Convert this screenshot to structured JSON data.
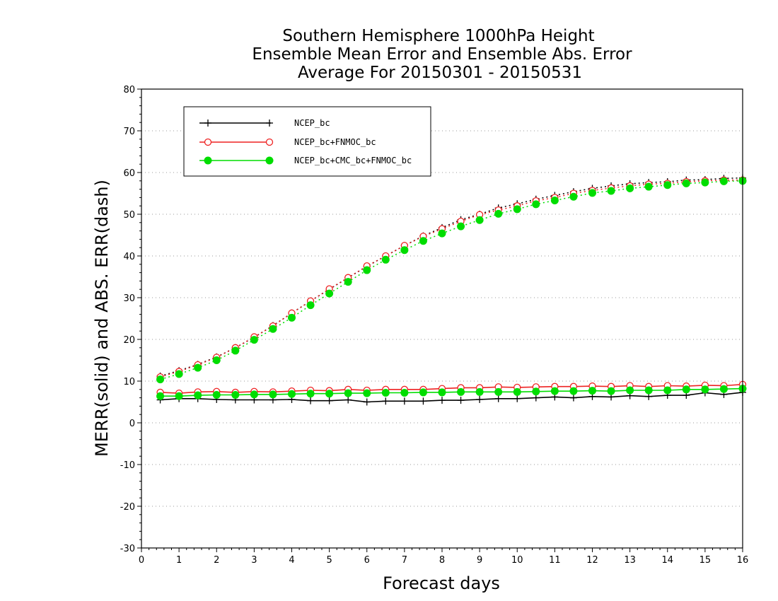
{
  "chart_data": {
    "type": "line",
    "title": [
      "Southern Hemisphere 1000hPa Height",
      "Ensemble Mean Error and Ensemble Abs. Error",
      "Average For 20150301 - 20150531"
    ],
    "xlabel": "Forecast days",
    "ylabel": "MERR(solid) and ABS. ERR(dash)",
    "xlim": [
      0,
      16
    ],
    "ylim": [
      -30,
      80
    ],
    "xticks": [
      "0",
      "1",
      "2",
      "3",
      "4",
      "5",
      "6",
      "7",
      "8",
      "9",
      "10",
      "11",
      "12",
      "13",
      "14",
      "15",
      "16"
    ],
    "yticks": [
      "-30",
      "-20",
      "-10",
      "0",
      "10",
      "20",
      "30",
      "40",
      "50",
      "60",
      "70",
      "80"
    ],
    "grid": "horizontal dotted",
    "legend_position": "top-left",
    "x": [
      0.5,
      1,
      1.5,
      2,
      2.5,
      3,
      3.5,
      4,
      4.5,
      5,
      5.5,
      6,
      6.5,
      7,
      7.5,
      8,
      8.5,
      9,
      9.5,
      10,
      10.5,
      11,
      11.5,
      12,
      12.5,
      13,
      13.5,
      14,
      14.5,
      15,
      15.5,
      16
    ],
    "series": [
      {
        "name": "NCEP_bc",
        "color": "#000000",
        "marker": "plus",
        "merr": [
          5.5,
          5.8,
          5.8,
          5.6,
          5.5,
          5.5,
          5.5,
          5.6,
          5.3,
          5.3,
          5.5,
          5.0,
          5.2,
          5.2,
          5.2,
          5.4,
          5.4,
          5.6,
          5.8,
          5.8,
          6.0,
          6.2,
          6.0,
          6.3,
          6.2,
          6.5,
          6.3,
          6.6,
          6.6,
          7.2,
          6.8,
          7.3
        ],
        "abs_err": [
          11.2,
          12.5,
          14.0,
          15.8,
          18.0,
          20.5,
          23.3,
          26.3,
          29.2,
          32.0,
          34.8,
          37.5,
          40.0,
          42.5,
          44.8,
          46.8,
          48.7,
          50.0,
          51.5,
          52.5,
          53.6,
          54.5,
          55.4,
          56.2,
          56.8,
          57.3,
          57.6,
          57.8,
          58.2,
          58.3,
          58.6,
          58.7
        ]
      },
      {
        "name": "NCEP_bc+FNMOC_bc",
        "color": "#ee2222",
        "marker": "open-circle",
        "merr": [
          7.3,
          7.1,
          7.4,
          7.5,
          7.3,
          7.5,
          7.4,
          7.6,
          7.8,
          7.7,
          8.0,
          7.8,
          8.0,
          8.0,
          8.0,
          8.2,
          8.4,
          8.4,
          8.6,
          8.5,
          8.6,
          8.7,
          8.7,
          8.8,
          8.7,
          8.9,
          8.7,
          8.9,
          8.8,
          9.0,
          8.9,
          9.2
        ],
        "abs_err": [
          11.0,
          12.3,
          13.9,
          15.7,
          18.0,
          20.6,
          23.2,
          26.3,
          29.2,
          32.1,
          34.8,
          37.6,
          40.0,
          42.5,
          44.7,
          46.5,
          48.3,
          49.9,
          51.0,
          52.0,
          53.2,
          54.0,
          55.0,
          55.7,
          56.3,
          56.8,
          57.2,
          57.4,
          57.8,
          58.0,
          58.2,
          58.2
        ]
      },
      {
        "name": "NCEP_bc+CMC_bc+FNMOC_bc",
        "color": "#00dd00",
        "marker": "filled-circle",
        "merr": [
          6.4,
          6.4,
          6.6,
          6.7,
          6.7,
          6.8,
          6.8,
          6.9,
          7.0,
          7.0,
          7.1,
          7.1,
          7.2,
          7.2,
          7.3,
          7.3,
          7.4,
          7.4,
          7.4,
          7.4,
          7.5,
          7.6,
          7.6,
          7.7,
          7.6,
          7.8,
          7.8,
          7.8,
          8.0,
          8.0,
          8.1,
          8.2
        ],
        "abs_err": [
          10.4,
          11.7,
          13.2,
          15.0,
          17.3,
          19.9,
          22.5,
          25.2,
          28.2,
          31.0,
          33.8,
          36.6,
          39.1,
          41.4,
          43.6,
          45.4,
          47.1,
          48.6,
          50.1,
          51.2,
          52.4,
          53.3,
          54.2,
          55.1,
          55.6,
          56.2,
          56.6,
          57.0,
          57.4,
          57.6,
          57.9,
          58.0
        ]
      }
    ]
  }
}
